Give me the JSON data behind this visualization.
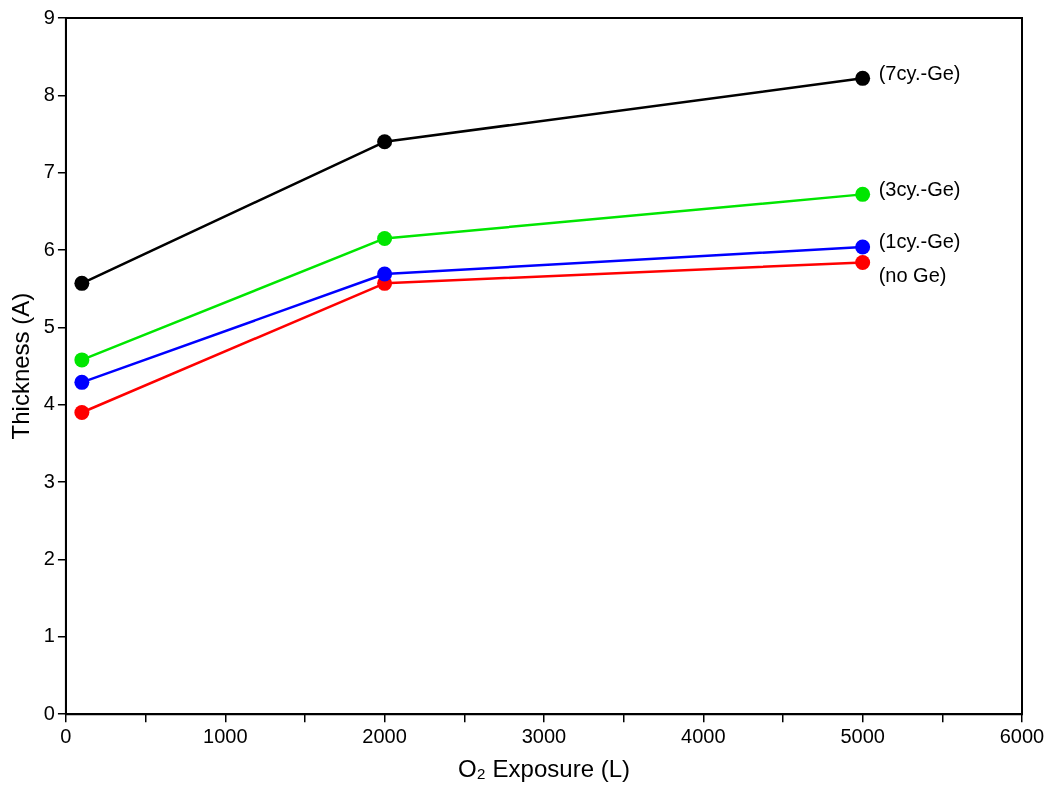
{
  "chart_data": {
    "type": "line",
    "xlabel": "O₂ Exposure (L)",
    "ylabel": "Thickness (A)",
    "x": [
      100,
      2000,
      5000
    ],
    "series": [
      {
        "name": "(7cy.-Ge)",
        "color": "#000000",
        "values": [
          5.57,
          7.4,
          8.22
        ]
      },
      {
        "name": "(3cy.-Ge)",
        "color": "#00e600",
        "values": [
          4.58,
          6.15,
          6.72
        ]
      },
      {
        "name": "(1cy.-Ge)",
        "color": "#0000ff",
        "values": [
          4.29,
          5.69,
          6.04
        ]
      },
      {
        "name": "(no Ge)",
        "color": "#ff0000",
        "values": [
          3.9,
          5.57,
          5.84
        ]
      }
    ],
    "xlim": [
      0,
      6000
    ],
    "xticks": [
      0,
      {
        "value": 500,
        "label": null
      },
      1000,
      {
        "value": 1500,
        "label": null
      },
      2000,
      {
        "value": 2500,
        "label": null
      },
      3000,
      {
        "value": 3500,
        "label": null
      },
      4000,
      {
        "value": 4500,
        "label": null
      },
      5000,
      {
        "value": 5500,
        "label": null
      },
      6000
    ],
    "ylim": [
      0,
      9
    ],
    "yticks": [
      0,
      1,
      2,
      3,
      4,
      5,
      6,
      7,
      8,
      9
    ],
    "marker": "circle",
    "line_style": "solid",
    "grid": false,
    "legend": false
  }
}
